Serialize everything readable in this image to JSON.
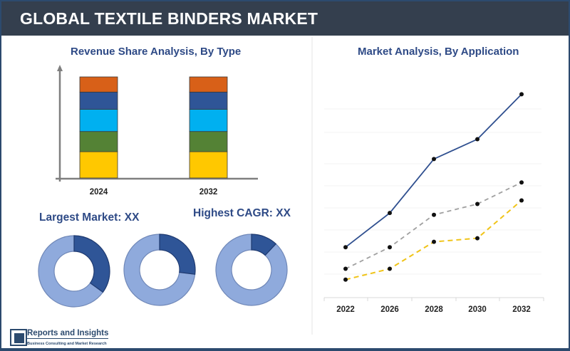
{
  "header": {
    "title": "GLOBAL TEXTILE BINDERS MARKET"
  },
  "left_panel": {
    "title": "Revenue Share Analysis, By Type",
    "largest_market": "Largest Market: XX",
    "highest_cagr": "Highest CAGR: XX"
  },
  "right_panel": {
    "title": "Market Analysis, By Application"
  },
  "branding": {
    "name": "Reports and Insights",
    "tagline": "Business Consulting and Market Research"
  },
  "colors": {
    "header_bg": "#343f4e",
    "title_blue": "#2e4a86",
    "segment_colors": [
      "#ffc800",
      "#548235",
      "#00b0f0",
      "#2f5597",
      "#d86018"
    ],
    "donut_dark": "#2f5597",
    "donut_light": "#8faadc",
    "line_blue": "#2f4f8f",
    "line_gray": "#a0a0a0",
    "line_yellow": "#f0c419"
  },
  "chart_data": [
    {
      "type": "bar",
      "stacked": true,
      "title": "Revenue Share Analysis, By Type",
      "categories": [
        "2024",
        "2032"
      ],
      "series": [
        {
          "name": "Segment 1 (yellow)",
          "values": [
            26,
            26
          ]
        },
        {
          "name": "Segment 2 (green)",
          "values": [
            20,
            20
          ]
        },
        {
          "name": "Segment 3 (cyan)",
          "values": [
            22,
            22
          ]
        },
        {
          "name": "Segment 4 (blue)",
          "values": [
            17,
            17
          ]
        },
        {
          "name": "Segment 5 (orange)",
          "values": [
            15,
            15
          ]
        }
      ],
      "xlabel": "",
      "ylabel": "",
      "grid": false,
      "legend": "none"
    },
    {
      "type": "pie",
      "subtype": "donut",
      "title": "Largest Market: XX",
      "donuts": [
        {
          "highlight": 35,
          "rest": 65
        },
        {
          "highlight": 27,
          "rest": 73
        },
        {
          "highlight": 12,
          "rest": 88
        }
      ]
    },
    {
      "type": "line",
      "title": "Market Analysis, By Application",
      "x": [
        "2022",
        "2026",
        "2028",
        "2030",
        "2032"
      ],
      "series": [
        {
          "name": "Application 1 (solid blue)",
          "values": [
            28,
            47,
            77,
            88,
            113
          ]
        },
        {
          "name": "Application 2 (dashed gray)",
          "values": [
            16,
            28,
            46,
            52,
            64
          ]
        },
        {
          "name": "Application 3 (dashed yellow)",
          "values": [
            10,
            16,
            31,
            33,
            54
          ]
        }
      ],
      "ylim": [
        0,
        125
      ],
      "grid": "faint horizontal",
      "legend": "none"
    }
  ]
}
